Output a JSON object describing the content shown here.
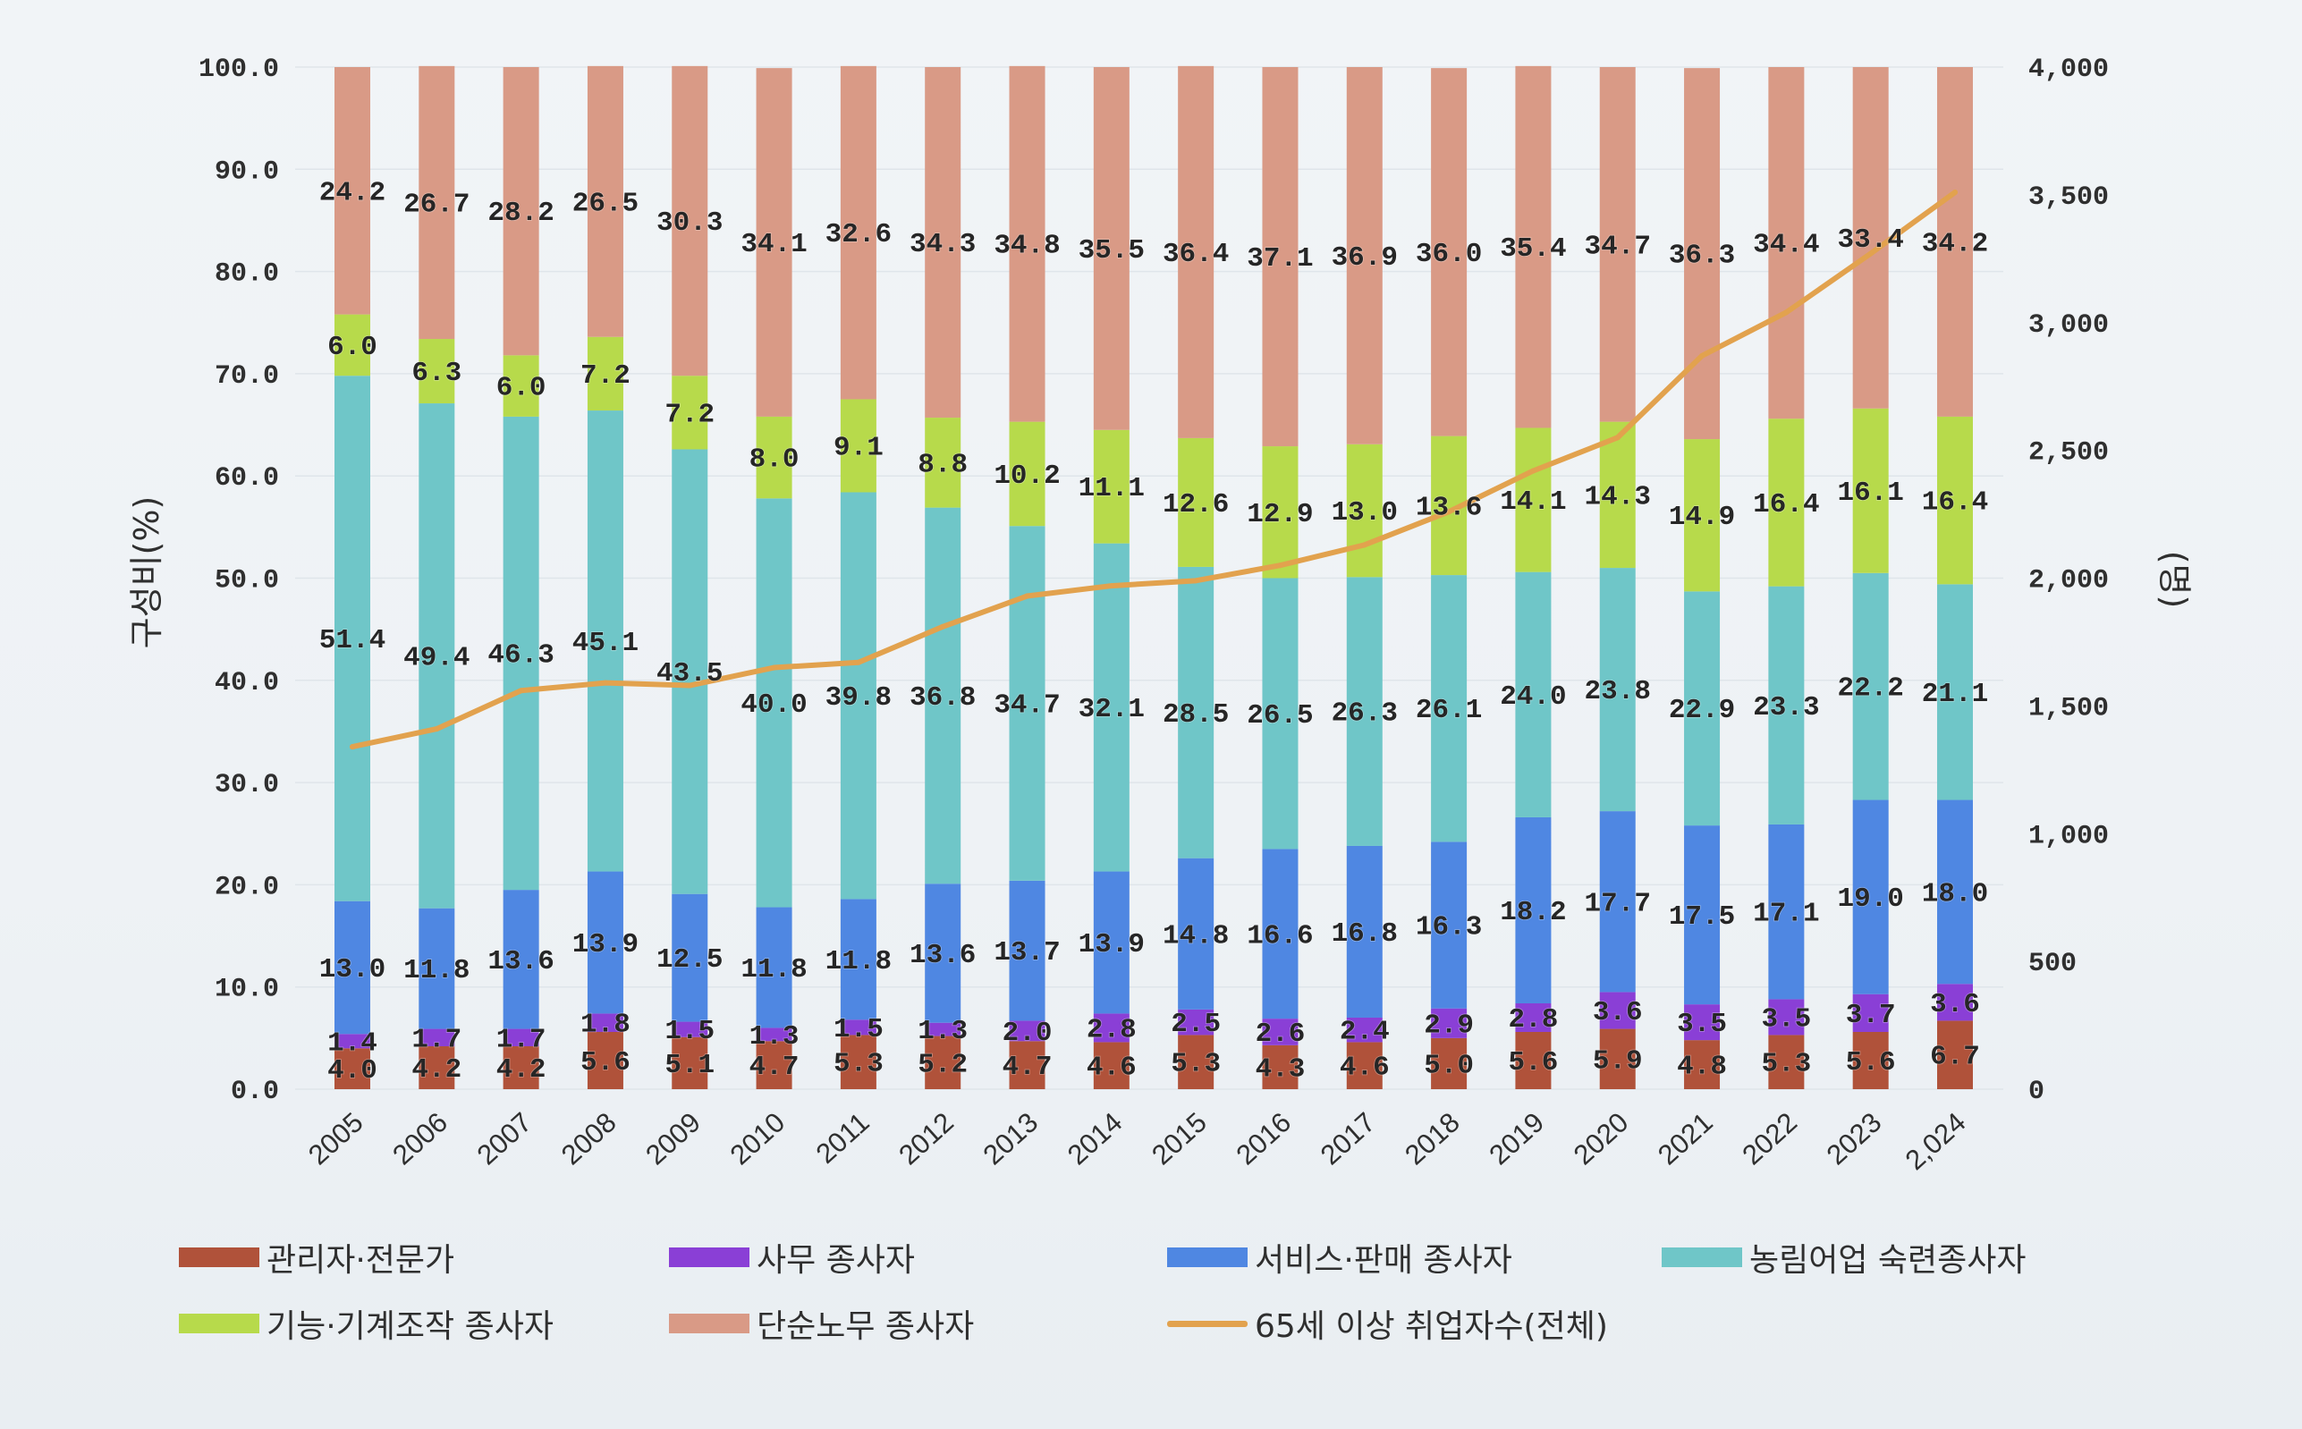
{
  "chart_data": {
    "type": "bar",
    "stacked": true,
    "categories": [
      "2005",
      "2006",
      "2007",
      "2008",
      "2009",
      "2010",
      "2011",
      "2012",
      "2013",
      "2014",
      "2015",
      "2016",
      "2017",
      "2018",
      "2019",
      "2020",
      "2021",
      "2022",
      "2023",
      "2,024"
    ],
    "ylabel": "구성비(%)",
    "y2label": "(명)",
    "ylim": [
      0,
      100
    ],
    "y2lim": [
      0,
      4000
    ],
    "yticks": [
      "0.0",
      "10.0",
      "20.0",
      "30.0",
      "40.0",
      "50.0",
      "60.0",
      "70.0",
      "80.0",
      "90.0",
      "100.0"
    ],
    "y2ticks": [
      "0",
      "500",
      "1,000",
      "1,500",
      "2,000",
      "2,500",
      "3,000",
      "3,500",
      "4,000"
    ],
    "grid": true,
    "legend": "bottom",
    "series": [
      {
        "name": "관리자·전문가",
        "color": "#b0523a",
        "values": [
          4.0,
          4.2,
          4.2,
          5.6,
          5.1,
          4.7,
          5.3,
          5.2,
          4.7,
          4.6,
          5.3,
          4.3,
          4.6,
          5.0,
          5.6,
          5.9,
          4.8,
          5.3,
          5.6,
          6.7
        ]
      },
      {
        "name": "사무 종사자",
        "color": "#8a3fd6",
        "values": [
          1.4,
          1.7,
          1.7,
          1.8,
          1.5,
          1.3,
          1.5,
          1.3,
          2.0,
          2.8,
          2.5,
          2.6,
          2.4,
          2.9,
          2.8,
          3.6,
          3.5,
          3.5,
          3.7,
          3.6
        ]
      },
      {
        "name": "서비스·판매 종사자",
        "color": "#4f87e2",
        "values": [
          13.0,
          11.8,
          13.6,
          13.9,
          12.5,
          11.8,
          11.8,
          13.6,
          13.7,
          13.9,
          14.8,
          16.6,
          16.8,
          16.3,
          18.2,
          17.7,
          17.5,
          17.1,
          19.0,
          18.0
        ]
      },
      {
        "name": "농림어업 숙련종사자",
        "color": "#6fc6c8",
        "values": [
          51.4,
          49.4,
          46.3,
          45.1,
          43.5,
          40.0,
          39.8,
          36.8,
          34.7,
          32.1,
          28.5,
          26.5,
          26.3,
          26.1,
          24.0,
          23.8,
          22.9,
          23.3,
          22.2,
          21.1
        ]
      },
      {
        "name": "기능·기계조작 종사자",
        "color": "#b7da4b",
        "values": [
          6.0,
          6.3,
          6.0,
          7.2,
          7.2,
          8.0,
          9.1,
          8.8,
          10.2,
          11.1,
          12.6,
          12.9,
          13.0,
          13.6,
          14.1,
          14.3,
          14.9,
          16.4,
          16.1,
          16.4
        ]
      },
      {
        "name": "단순노무 종사자",
        "color": "#d99a86",
        "values": [
          24.2,
          26.7,
          28.2,
          26.5,
          30.3,
          34.1,
          32.6,
          34.3,
          34.8,
          35.5,
          36.4,
          37.1,
          36.9,
          36.0,
          35.4,
          34.7,
          36.3,
          34.4,
          33.4,
          34.2
        ]
      }
    ],
    "line_series": {
      "name": "65세 이상 취업자수(전체)",
      "color": "#e2a24e",
      "values": [
        1340,
        1410,
        1560,
        1590,
        1580,
        1650,
        1670,
        1810,
        1930,
        1970,
        1990,
        2050,
        2130,
        2260,
        2420,
        2550,
        2870,
        3040,
        3270,
        3510
      ]
    }
  }
}
